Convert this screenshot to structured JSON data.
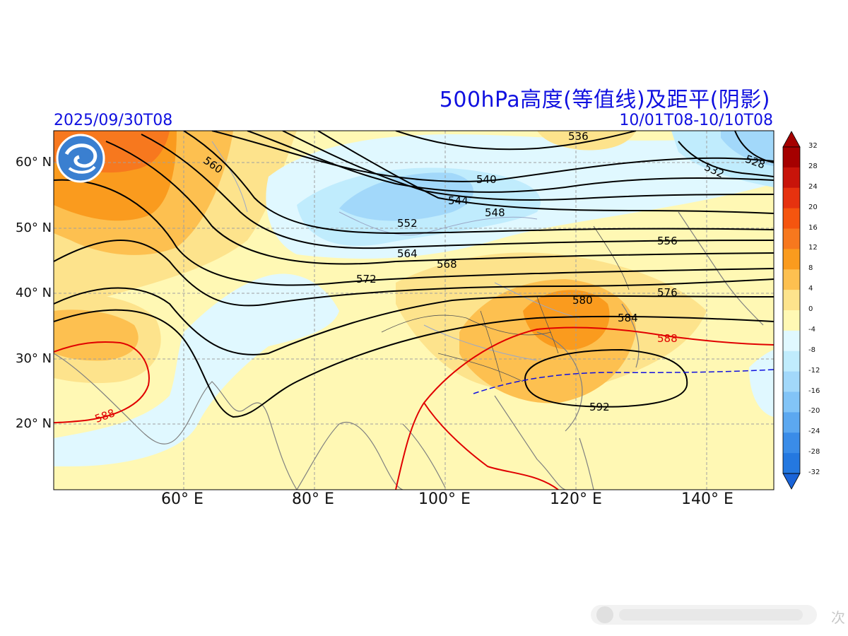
{
  "header": {
    "title": "500hPa高度(等值线)及距平(阴影)",
    "init_time": "2025/09/30T08",
    "valid_range": "10/01T08-10/10T08"
  },
  "axes": {
    "lat_labels": [
      "60° N",
      "50° N",
      "40° N",
      "30° N",
      "20° N"
    ],
    "lon_labels": [
      "60° E",
      "80° E",
      "100° E",
      "120° E",
      "140° E"
    ]
  },
  "colorbar": {
    "ticks": [
      "32",
      "28",
      "24",
      "20",
      "16",
      "12",
      "8",
      "4",
      "0",
      "-4",
      "-8",
      "-12",
      "-16",
      "-20",
      "-24",
      "-28",
      "-32"
    ],
    "colors": [
      "#a50000",
      "#c8140a",
      "#e6320f",
      "#f5550f",
      "#f7781e",
      "#fa9b1e",
      "#fdc050",
      "#fde38c",
      "#fff8b4",
      "#e0f8ff",
      "#c0ecfd",
      "#a2d8fa",
      "#82c4f7",
      "#5ca8f0",
      "#3a8ce8",
      "#2478e0",
      "#1a64d8"
    ]
  },
  "contours": {
    "labels": [
      "560",
      "536",
      "532",
      "528",
      "540",
      "544",
      "548",
      "552",
      "556",
      "564",
      "568",
      "572",
      "576",
      "580",
      "584",
      "588",
      "588",
      "592"
    ]
  },
  "watermark": {
    "text": "次"
  },
  "colors": {
    "title": "#1010e0",
    "contour_black": "#000000",
    "contour_588": "#e00000",
    "dashed_line": "#1010e0"
  }
}
